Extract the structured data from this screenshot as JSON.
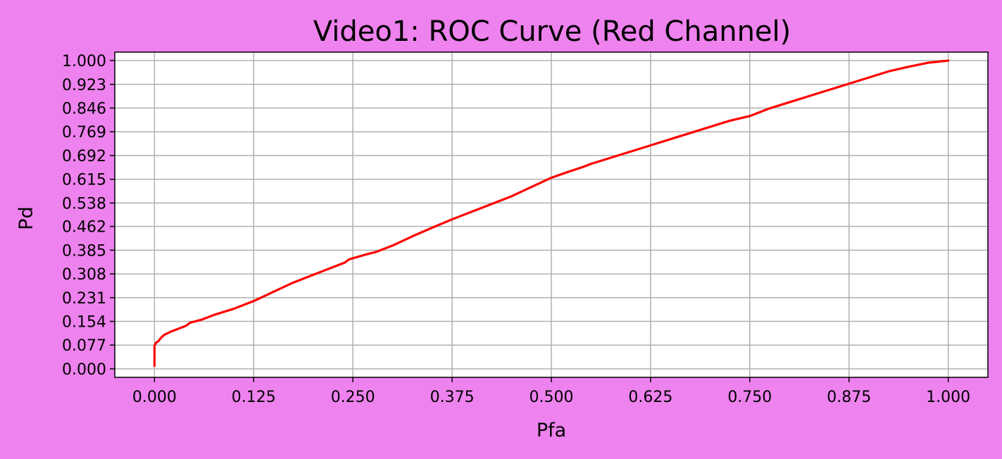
{
  "colors": {
    "figure_background": "#ee82ee",
    "plot_background": "#ffffff",
    "line": "#ff0000",
    "grid": "#b0b0b0",
    "axes": "#000000"
  },
  "chart_data": {
    "type": "line",
    "title": "Video1: ROC Curve (Red Channel)",
    "xlabel": "Pfa",
    "ylabel": "Pd",
    "xlim": [
      -0.05,
      1.05
    ],
    "ylim": [
      -0.0275,
      1.0275
    ],
    "grid": true,
    "x_ticks": [
      0.0,
      0.125,
      0.25,
      0.375,
      0.5,
      0.625,
      0.75,
      0.875,
      1.0
    ],
    "x_tick_labels": [
      "0.000",
      "0.125",
      "0.250",
      "0.375",
      "0.500",
      "0.625",
      "0.750",
      "0.875",
      "1.000"
    ],
    "y_ticks": [
      0.0,
      0.077,
      0.154,
      0.231,
      0.308,
      0.385,
      0.462,
      0.538,
      0.615,
      0.692,
      0.769,
      0.846,
      0.923,
      1.0
    ],
    "y_tick_labels": [
      "0.000",
      "0.077",
      "0.154",
      "0.231",
      "0.308",
      "0.385",
      "0.462",
      "0.538",
      "0.615",
      "0.692",
      "0.769",
      "0.846",
      "0.923",
      "1.000"
    ],
    "series": [
      {
        "color": "#ff0000",
        "x": [
          0.0,
          0.0,
          0.002,
          0.005,
          0.008,
          0.012,
          0.02,
          0.03,
          0.04,
          0.045,
          0.06,
          0.075,
          0.1,
          0.125,
          0.15,
          0.175,
          0.2,
          0.215,
          0.23,
          0.24,
          0.245,
          0.265,
          0.28,
          0.3,
          0.325,
          0.35,
          0.375,
          0.4,
          0.42,
          0.45,
          0.475,
          0.5,
          0.52,
          0.54,
          0.55,
          0.575,
          0.6,
          0.625,
          0.65,
          0.675,
          0.7,
          0.725,
          0.75,
          0.775,
          0.8,
          0.825,
          0.85,
          0.875,
          0.9,
          0.925,
          0.95,
          0.975,
          1.0
        ],
        "y": [
          0.01,
          0.075,
          0.085,
          0.09,
          0.1,
          0.11,
          0.12,
          0.13,
          0.14,
          0.15,
          0.16,
          0.175,
          0.195,
          0.22,
          0.25,
          0.28,
          0.305,
          0.32,
          0.335,
          0.345,
          0.355,
          0.37,
          0.38,
          0.4,
          0.43,
          0.458,
          0.485,
          0.51,
          0.53,
          0.56,
          0.59,
          0.62,
          0.638,
          0.655,
          0.665,
          0.685,
          0.705,
          0.725,
          0.745,
          0.765,
          0.785,
          0.805,
          0.82,
          0.845,
          0.865,
          0.885,
          0.905,
          0.925,
          0.945,
          0.965,
          0.98,
          0.993,
          1.0
        ]
      }
    ]
  }
}
